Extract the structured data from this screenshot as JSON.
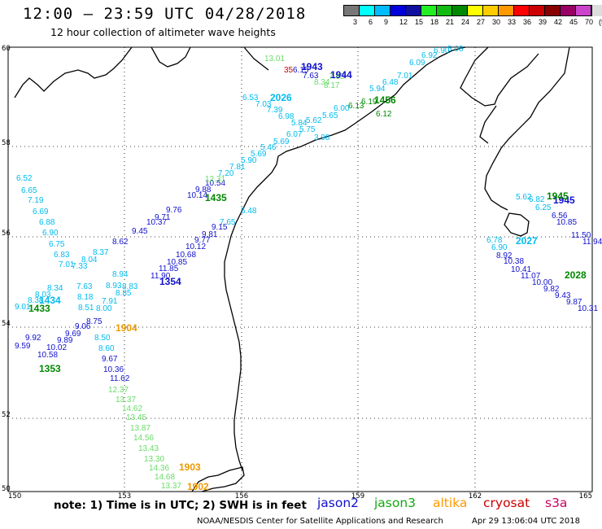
{
  "header": {
    "title": "12:00 — 23:59 UTC 04/28/2018",
    "subtitle": "12 hour collection of altimeter wave heights"
  },
  "color_scale": {
    "colors": [
      "#777777",
      "#00ffff",
      "#00bbff",
      "#0000dd",
      "#1010a0",
      "#22ee22",
      "#11bb11",
      "#008800",
      "#ffff00",
      "#ffcc00",
      "#ff9900",
      "#ff0000",
      "#cc0000",
      "#880000",
      "#990066",
      "#cc44cc",
      "#dddddd",
      "#000000"
    ],
    "ticks": [
      "3",
      "6",
      "9",
      "12",
      "15",
      "18",
      "21",
      "24",
      "27",
      "30",
      "33",
      "36",
      "39",
      "42",
      "45",
      "70"
    ],
    "unit": "(ft)"
  },
  "axes": {
    "lon_labels": [
      "150",
      "153",
      "156",
      "159",
      "162",
      "165"
    ],
    "lat_labels": [
      "60",
      "58",
      "56",
      "54",
      "52",
      "50"
    ]
  },
  "tracks": [
    {
      "sat": "jason2",
      "color": "#1010cc",
      "time": "1943",
      "time_at": [
        370,
        86
      ],
      "points": [
        [
          "9.59",
          18,
          428
        ],
        [
          "9.92",
          31,
          418
        ],
        [
          "10.58",
          46,
          439
        ],
        [
          "10.02",
          57,
          430
        ],
        [
          "9.89",
          70,
          421
        ],
        [
          "9.69",
          80,
          413
        ],
        [
          "9.06",
          92,
          404
        ],
        [
          "8.75",
          106,
          398
        ],
        [
          "8.62",
          138,
          300
        ],
        [
          "9.45",
          162,
          287
        ],
        [
          "10.37",
          180,
          276
        ],
        [
          "9.71",
          190,
          270
        ],
        [
          "9.76",
          204,
          261
        ],
        [
          "10.14",
          230,
          243
        ],
        [
          "9.88",
          240,
          236
        ],
        [
          "10.54",
          252,
          228
        ]
      ]
    },
    {
      "sat": "jason2",
      "color": "#1010cc",
      "time": "1354",
      "time_at": [
        196,
        350
      ],
      "points": [
        [
          "9.67",
          125,
          444
        ],
        [
          "10.36",
          127,
          457
        ],
        [
          "11.62",
          135,
          468
        ],
        [
          "11.90",
          185,
          342
        ],
        [
          "11.85",
          195,
          333
        ],
        [
          "10.85",
          205,
          325
        ],
        [
          "10.68",
          216,
          316
        ],
        [
          "10.12",
          228,
          306
        ],
        [
          "9.77",
          239,
          298
        ],
        [
          "9.81",
          248,
          291
        ],
        [
          "9.15",
          260,
          282
        ]
      ]
    },
    {
      "sat": "jason3",
      "color": "#00bbee",
      "time": "1434",
      "time_at": [
        48,
        373
      ],
      "points": [
        [
          "6.52",
          20,
          222
        ],
        [
          "6.65",
          26,
          237
        ],
        [
          "7.19",
          34,
          249
        ],
        [
          "6.69",
          40,
          263
        ],
        [
          "6.88",
          48,
          276
        ],
        [
          "6.90",
          52,
          289
        ],
        [
          "6.75",
          60,
          303
        ],
        [
          "6.83",
          66,
          316
        ],
        [
          "7.01",
          72,
          328
        ],
        [
          "7.33",
          88,
          330
        ],
        [
          "8.04",
          100,
          322
        ],
        [
          "8.37",
          114,
          313
        ],
        [
          "8.94",
          138,
          340
        ],
        [
          "8.93",
          130,
          354
        ],
        [
          "8.34",
          58,
          357
        ],
        [
          "8.03",
          43,
          365
        ],
        [
          "8.38",
          34,
          372
        ],
        [
          "9.01",
          18,
          380
        ],
        [
          "7.63",
          94,
          355
        ],
        [
          "8.18",
          95,
          368
        ],
        [
          "8.51",
          96,
          381
        ],
        [
          "8.00",
          118,
          382
        ],
        [
          "7.91",
          125,
          373
        ],
        [
          "8.85",
          142,
          363
        ],
        [
          "8.83",
          150,
          355
        ],
        [
          "8.50",
          116,
          418
        ],
        [
          "8.60",
          121,
          431
        ]
      ]
    },
    {
      "sat": "jason3",
      "color": "#008800",
      "time": "1435",
      "time_at": [
        252,
        247
      ],
      "points": []
    },
    {
      "sat": "jason3",
      "color": "#008800",
      "time": "1433",
      "time_at": [
        35,
        383
      ],
      "points": []
    },
    {
      "sat": "jason3",
      "color": "#008800",
      "time": "1353",
      "time_at": [
        48,
        457
      ],
      "points": []
    },
    {
      "sat": "jason3",
      "color": "#00bbee",
      "time": "2026",
      "time_at": [
        332,
        124
      ],
      "points": [
        [
          "6.53",
          298,
          123
        ],
        [
          "7.03",
          314,
          131
        ],
        [
          "7.39",
          328,
          138
        ],
        [
          "6.98",
          342,
          146
        ],
        [
          "5.84",
          358,
          154
        ],
        [
          "5.62",
          376,
          151
        ],
        [
          "5.75",
          368,
          162
        ],
        [
          "6.07",
          352,
          168
        ],
        [
          "5.69",
          336,
          177
        ],
        [
          "5.46",
          320,
          184
        ],
        [
          "5.69",
          308,
          192
        ],
        [
          "5.90",
          296,
          200
        ],
        [
          "7.81",
          282,
          208
        ],
        [
          "7.20",
          268,
          216
        ],
        [
          "5.48",
          296,
          262
        ],
        [
          "7.65",
          270,
          276
        ],
        [
          "3.98",
          386,
          172
        ],
        [
          "5.65",
          396,
          145
        ],
        [
          "6.00",
          410,
          136
        ],
        [
          "5.94",
          454,
          112
        ],
        [
          "6.48",
          470,
          104
        ],
        [
          "7.01",
          488,
          96
        ],
        [
          "6.09",
          503,
          80
        ],
        [
          "6.92",
          518,
          71
        ],
        [
          "6.90",
          533,
          65
        ],
        [
          "5.08",
          550,
          63
        ]
      ]
    },
    {
      "sat": "jason3",
      "color": "#008800",
      "time": "1456",
      "time_at": [
        460,
        127
      ],
      "points": [
        [
          "6.12",
          462,
          143
        ],
        [
          "6.13",
          428,
          133
        ],
        [
          "6.19",
          444,
          128
        ]
      ]
    },
    {
      "sat": "altika",
      "color": "#ee9900",
      "time": "1904",
      "time_at": [
        142,
        407
      ],
      "points": []
    },
    {
      "sat": "altika",
      "color": "#ee9900",
      "time": "1903",
      "time_at": [
        220,
        578
      ],
      "points": []
    },
    {
      "sat": "altika",
      "color": "#ee9900",
      "time": "1902",
      "time_at": [
        230,
        602
      ],
      "points": []
    },
    {
      "sat": "jason3",
      "color": "#66dd66",
      "time": "",
      "points": [
        [
          "12.37",
          133,
          482
        ],
        [
          "13.37",
          142,
          494
        ],
        [
          "14.62",
          150,
          505
        ],
        [
          "13.45",
          155,
          516
        ],
        [
          "13.87",
          160,
          529
        ],
        [
          "14.56",
          164,
          541
        ],
        [
          "13.43",
          170,
          554
        ],
        [
          "13.30",
          177,
          567
        ],
        [
          "14.36",
          183,
          578
        ],
        [
          "14.68",
          190,
          589
        ],
        [
          "13.37",
          198,
          600
        ],
        [
          "12.31",
          252,
          223
        ],
        [
          "13.01",
          325,
          75
        ],
        [
          "7.63",
          404,
          97
        ],
        [
          "8.17",
          398,
          108
        ],
        [
          "8.34",
          386,
          104
        ]
      ]
    },
    {
      "sat": "cryosat",
      "color": "#cc0000",
      "time": "",
      "points": [
        [
          "35",
          349,
          89
        ]
      ]
    },
    {
      "sat": "jason2",
      "color": "#1010cc",
      "time": "1944",
      "time_at": [
        406,
        96
      ],
      "points": [
        [
          "6.15",
          360,
          89
        ],
        [
          "7.63",
          372,
          96
        ]
      ]
    },
    {
      "sat": "jason2",
      "color": "#1010cc",
      "time": "1945",
      "time_at": [
        680,
        250
      ],
      "points": [
        [
          "6.56",
          678,
          268
        ],
        [
          "10.85",
          684,
          276
        ],
        [
          "11.50",
          702,
          292
        ],
        [
          "11.94",
          716,
          300
        ],
        [
          "10.38",
          619,
          324
        ],
        [
          "10.41",
          628,
          334
        ],
        [
          "11.07",
          640,
          342
        ],
        [
          "10.00",
          654,
          350
        ],
        [
          "9.82",
          668,
          358
        ],
        [
          "9.43",
          682,
          366
        ],
        [
          "9.87",
          696,
          374
        ],
        [
          "10.31",
          710,
          382
        ],
        [
          "8.92",
          610,
          317
        ]
      ]
    },
    {
      "sat": "jason3",
      "color": "#00bbee",
      "time": "2027",
      "time_at": [
        634,
        300
      ],
      "points": [
        [
          "5.62",
          634,
          245
        ],
        [
          "6.82",
          650,
          248
        ],
        [
          "6.25",
          658,
          258
        ],
        [
          "6.78",
          598,
          298
        ],
        [
          "6.90",
          604,
          307
        ]
      ]
    },
    {
      "sat": "jason3",
      "color": "#008800",
      "time": "2028",
      "time_at": [
        694,
        342
      ],
      "points": []
    },
    {
      "sat": "jason3",
      "color": "#008800",
      "time": "1945",
      "time_at": [
        672,
        245
      ],
      "points": []
    }
  ],
  "footer": {
    "note": "note:  1)  Time is in UTC;  2)  SWH is in feet",
    "satellites": [
      {
        "name": "jason2",
        "color": "#1010cc"
      },
      {
        "name": "jason3",
        "color": "#11aa11"
      },
      {
        "name": "altika",
        "color": "#ff9900"
      },
      {
        "name": "cryosat",
        "color": "#cc0000"
      },
      {
        "name": "s3a",
        "color": "#cc0066"
      }
    ],
    "credit_left": "NOAA/NESDIS Center for Satellite Applications and Research",
    "credit_right": "Apr 29 13:06:04 UTC 2018"
  }
}
